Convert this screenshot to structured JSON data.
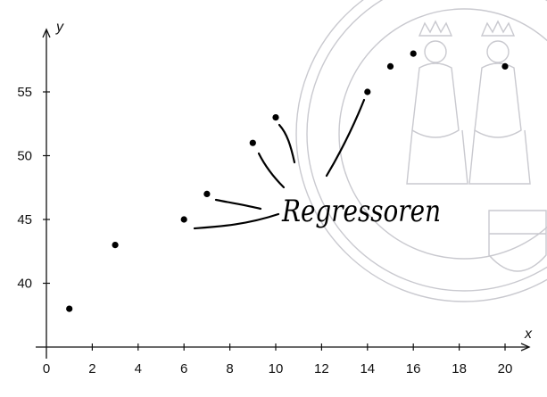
{
  "chart_data": {
    "type": "scatter",
    "title": "",
    "xlabel": "x",
    "ylabel": "y",
    "xlim": [
      0,
      21
    ],
    "ylim": [
      35,
      60
    ],
    "x_ticks": [
      0,
      2,
      4,
      6,
      8,
      10,
      12,
      14,
      16,
      18,
      20
    ],
    "y_ticks": [
      40,
      45,
      50,
      55
    ],
    "grid": false,
    "x": [
      1,
      3,
      6,
      7,
      9,
      10,
      14,
      15,
      16,
      20
    ],
    "y": [
      38,
      43,
      45,
      47,
      51,
      53,
      55,
      57,
      58,
      57
    ],
    "annotation": "Regressoren",
    "annotated_points_x": [
      6,
      7,
      9,
      10,
      14
    ],
    "colors": {
      "points": "#000000",
      "axes": "#111111",
      "ink": "#000000",
      "seal": "#c9c9cf"
    }
  }
}
